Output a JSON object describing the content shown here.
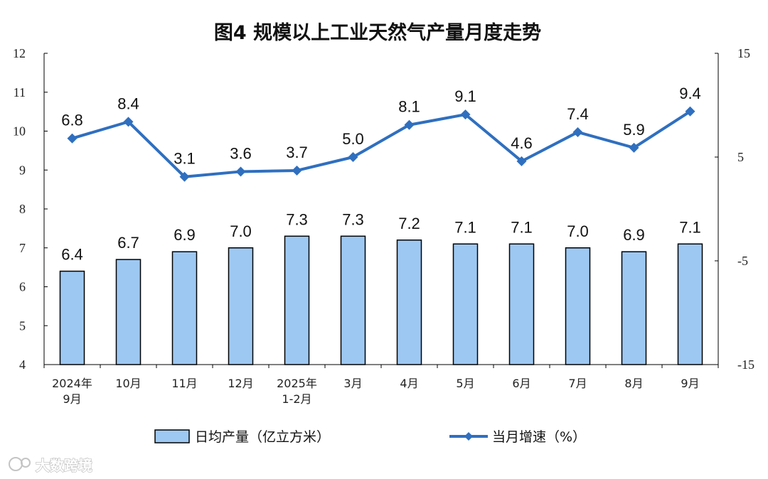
{
  "chart_data": {
    "type": "bar+line",
    "title": "图4  规模以上工业天然气产量月度走势",
    "categories": [
      [
        "2024年",
        "9月"
      ],
      [
        "10月"
      ],
      [
        "11月"
      ],
      [
        "12月"
      ],
      [
        "2025年",
        "1-2月"
      ],
      [
        "3月"
      ],
      [
        "4月"
      ],
      [
        "5月"
      ],
      [
        "6月"
      ],
      [
        "7月"
      ],
      [
        "8月"
      ],
      [
        "9月"
      ]
    ],
    "series": [
      {
        "name": "日均产量（亿立方米）",
        "type": "bar",
        "axis": "left",
        "values": [
          6.4,
          6.7,
          6.9,
          7.0,
          7.3,
          7.3,
          7.2,
          7.1,
          7.1,
          7.0,
          6.9,
          7.1
        ],
        "labels": [
          "6.4",
          "6.7",
          "6.9",
          "7.0",
          "7.3",
          "7.3",
          "7.2",
          "7.1",
          "7.1",
          "7.0",
          "6.9",
          "7.1"
        ]
      },
      {
        "name": "当月增速（%）",
        "type": "line",
        "axis": "right",
        "values": [
          6.8,
          8.4,
          3.1,
          3.6,
          3.7,
          5.0,
          8.1,
          9.1,
          4.6,
          7.4,
          5.9,
          9.4
        ],
        "labels": [
          "6.8",
          "8.4",
          "3.1",
          "3.6",
          "3.7",
          "5.0",
          "8.1",
          "9.1",
          "4.6",
          "7.4",
          "5.9",
          "9.4"
        ]
      }
    ],
    "y_left": {
      "range": [
        4,
        12
      ],
      "ticks": [
        "4",
        "5",
        "6",
        "7",
        "8",
        "9",
        "10",
        "11",
        "12"
      ]
    },
    "y_right": {
      "range": [
        -15,
        15
      ],
      "ticks": [
        "-15",
        "-5",
        "5",
        "15"
      ]
    },
    "grid": false,
    "legend": "bottom",
    "colors": {
      "bar_fill": "#9dc8f2",
      "bar_stroke": "#000000",
      "line": "#2f6fbf",
      "axis": "#000000"
    }
  },
  "watermark": {
    "text": "大数跨境"
  }
}
